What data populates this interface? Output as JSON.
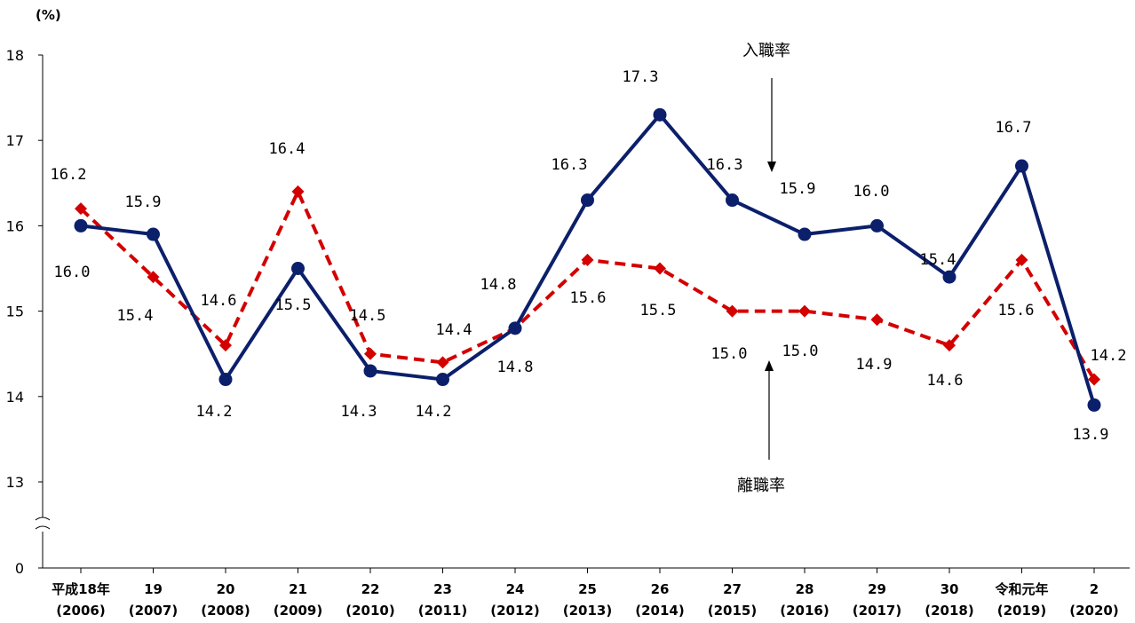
{
  "chart_data": {
    "type": "line",
    "unit_label": "(%)",
    "categories": [
      {
        "label": "平成18年",
        "sub": "(2006)"
      },
      {
        "label": "19",
        "sub": "(2007)"
      },
      {
        "label": "20",
        "sub": "(2008)"
      },
      {
        "label": "21",
        "sub": "(2009)"
      },
      {
        "label": "22",
        "sub": "(2010)"
      },
      {
        "label": "23",
        "sub": "(2011)"
      },
      {
        "label": "24",
        "sub": "(2012)"
      },
      {
        "label": "25",
        "sub": "(2013)"
      },
      {
        "label": "26",
        "sub": "(2014)"
      },
      {
        "label": "27",
        "sub": "(2015)"
      },
      {
        "label": "28",
        "sub": "(2016)"
      },
      {
        "label": "29",
        "sub": "(2017)"
      },
      {
        "label": "30",
        "sub": "(2018)"
      },
      {
        "label": "令和元年",
        "sub": "(2019)"
      },
      {
        "label": "2",
        "sub": "(2020)"
      }
    ],
    "y_ticks": [
      "18",
      "17",
      "16",
      "15",
      "14",
      "13",
      "0"
    ],
    "ylim": [
      13,
      18
    ],
    "axis_break": true,
    "series": [
      {
        "name": "入職率",
        "style": "solid",
        "marker": "circle",
        "color": "#0b1f6b",
        "values": [
          16.0,
          15.9,
          14.2,
          15.5,
          14.3,
          14.2,
          14.8,
          16.3,
          17.3,
          16.3,
          15.9,
          16.0,
          15.4,
          16.7,
          13.9
        ],
        "labels": [
          "16.0",
          "15.9",
          "14.2",
          "15.5",
          "14.3",
          "14.2",
          "14.8",
          "16.3",
          "17.3",
          "16.3",
          "15.9",
          "16.0",
          "15.4",
          "16.7",
          "13.9"
        ]
      },
      {
        "name": "離職率",
        "style": "dashed",
        "marker": "diamond",
        "color": "#d40000",
        "values": [
          16.2,
          15.4,
          14.6,
          16.4,
          14.5,
          14.4,
          14.8,
          15.6,
          15.5,
          15.0,
          15.0,
          14.9,
          14.6,
          15.6,
          14.2
        ],
        "labels": [
          "16.2",
          "15.4",
          "14.6",
          "16.4",
          "14.5",
          "14.4",
          "14.8",
          "15.6",
          "15.5",
          "15.0",
          "15.0",
          "14.9",
          "14.6",
          "15.6",
          "14.2"
        ]
      }
    ],
    "grid": false,
    "legend": "callout annotations with arrows"
  }
}
